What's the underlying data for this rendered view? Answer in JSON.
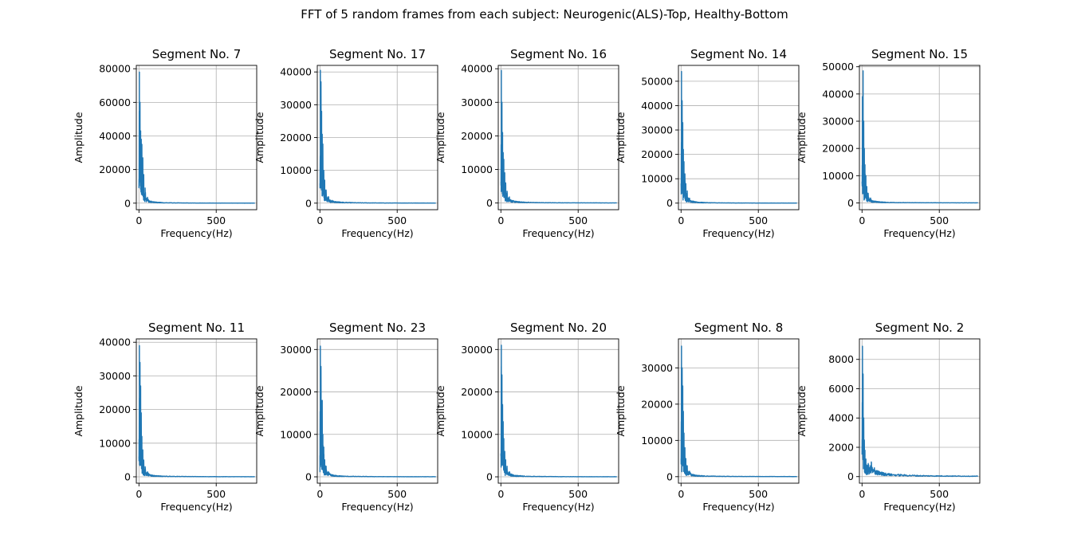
{
  "figure": {
    "title": "FFT of 5 random frames from each subject: Neurogenic(ALS)-Top, Healthy-Bottom"
  },
  "colors": {
    "line": "#1f77b4",
    "grid": "#b0b0b0",
    "axes": "#000000"
  },
  "chart_data": [
    {
      "type": "line",
      "title": "Segment No. 7",
      "xlabel": "Frequency(Hz)",
      "ylabel": "Amplitude",
      "xlim": [
        -17,
        762
      ],
      "ylim": [
        -3900,
        82000
      ],
      "xticks": [
        0,
        500
      ],
      "yticks": [
        0,
        20000,
        40000,
        60000,
        80000
      ],
      "grid": true,
      "peaks": [
        [
          0,
          9000
        ],
        [
          3,
          78000
        ],
        [
          5,
          20000
        ],
        [
          7,
          60000
        ],
        [
          9,
          25000
        ],
        [
          11,
          43000
        ],
        [
          13,
          15000
        ],
        [
          15,
          38000
        ],
        [
          17,
          14000
        ],
        [
          19,
          35000
        ],
        [
          22,
          12000
        ],
        [
          25,
          27000
        ],
        [
          28,
          8000
        ],
        [
          31,
          17000
        ],
        [
          35,
          5000
        ],
        [
          40,
          9000
        ],
        [
          45,
          3000
        ],
        [
          55,
          3500
        ],
        [
          65,
          1500
        ],
        [
          80,
          1200
        ],
        [
          100,
          800
        ],
        [
          150,
          400
        ],
        [
          250,
          200
        ],
        [
          400,
          100
        ],
        [
          740,
          50
        ]
      ]
    },
    {
      "type": "line",
      "title": "Segment No. 17",
      "xlabel": "Frequency(Hz)",
      "ylabel": "Amplitude",
      "xlim": [
        -17,
        762
      ],
      "ylim": [
        -2000,
        42000
      ],
      "xticks": [
        0,
        500
      ],
      "yticks": [
        0,
        10000,
        20000,
        30000,
        40000
      ],
      "grid": true,
      "peaks": [
        [
          0,
          6000
        ],
        [
          3,
          40500
        ],
        [
          5,
          8000
        ],
        [
          7,
          37000
        ],
        [
          9,
          12000
        ],
        [
          11,
          28000
        ],
        [
          13,
          9000
        ],
        [
          15,
          21000
        ],
        [
          17,
          6000
        ],
        [
          19,
          18000
        ],
        [
          22,
          5000
        ],
        [
          25,
          10000
        ],
        [
          28,
          3000
        ],
        [
          31,
          7000
        ],
        [
          35,
          2500
        ],
        [
          40,
          4000
        ],
        [
          45,
          1500
        ],
        [
          55,
          2000
        ],
        [
          65,
          1000
        ],
        [
          80,
          800
        ],
        [
          100,
          500
        ],
        [
          150,
          300
        ],
        [
          250,
          150
        ],
        [
          400,
          80
        ],
        [
          740,
          40
        ]
      ]
    },
    {
      "type": "line",
      "title": "Segment No. 16",
      "xlabel": "Frequency(Hz)",
      "ylabel": "Amplitude",
      "xlim": [
        -17,
        762
      ],
      "ylim": [
        -2000,
        41000
      ],
      "xticks": [
        0,
        500
      ],
      "yticks": [
        0,
        10000,
        20000,
        30000,
        40000
      ],
      "grid": true,
      "peaks": [
        [
          0,
          6000
        ],
        [
          3,
          39500
        ],
        [
          5,
          7000
        ],
        [
          7,
          30000
        ],
        [
          9,
          10000
        ],
        [
          11,
          21000
        ],
        [
          13,
          7000
        ],
        [
          15,
          15000
        ],
        [
          17,
          5000
        ],
        [
          19,
          13000
        ],
        [
          22,
          4000
        ],
        [
          25,
          9000
        ],
        [
          28,
          2500
        ],
        [
          31,
          6000
        ],
        [
          35,
          2000
        ],
        [
          40,
          3500
        ],
        [
          45,
          1500
        ],
        [
          55,
          1800
        ],
        [
          65,
          900
        ],
        [
          80,
          700
        ],
        [
          100,
          500
        ],
        [
          150,
          300
        ],
        [
          250,
          150
        ],
        [
          400,
          80
        ],
        [
          740,
          40
        ]
      ]
    },
    {
      "type": "line",
      "title": "Segment No. 14",
      "xlabel": "Frequency(Hz)",
      "ylabel": "Amplitude",
      "xlim": [
        -17,
        762
      ],
      "ylim": [
        -2700,
        56500
      ],
      "xticks": [
        0,
        500
      ],
      "yticks": [
        0,
        10000,
        20000,
        30000,
        40000,
        50000
      ],
      "grid": true,
      "peaks": [
        [
          0,
          8000
        ],
        [
          3,
          54000
        ],
        [
          5,
          10000
        ],
        [
          7,
          42000
        ],
        [
          9,
          14000
        ],
        [
          11,
          33000
        ],
        [
          13,
          10000
        ],
        [
          15,
          22000
        ],
        [
          17,
          7000
        ],
        [
          19,
          17000
        ],
        [
          22,
          6000
        ],
        [
          25,
          12000
        ],
        [
          28,
          4000
        ],
        [
          31,
          8000
        ],
        [
          35,
          3000
        ],
        [
          40,
          5000
        ],
        [
          45,
          2000
        ],
        [
          55,
          2000
        ],
        [
          65,
          1000
        ],
        [
          80,
          800
        ],
        [
          100,
          500
        ],
        [
          150,
          300
        ],
        [
          250,
          150
        ],
        [
          400,
          80
        ],
        [
          740,
          40
        ]
      ]
    },
    {
      "type": "line",
      "title": "Segment No. 15",
      "xlabel": "Frequency(Hz)",
      "ylabel": "Amplitude",
      "xlim": [
        -17,
        762
      ],
      "ylim": [
        -2500,
        50500
      ],
      "xticks": [
        0,
        500
      ],
      "yticks": [
        0,
        10000,
        20000,
        30000,
        40000,
        50000
      ],
      "grid": true,
      "peaks": [
        [
          0,
          7000
        ],
        [
          3,
          39000
        ],
        [
          5,
          12000
        ],
        [
          7,
          48500
        ],
        [
          9,
          15000
        ],
        [
          11,
          30000
        ],
        [
          13,
          8000
        ],
        [
          15,
          20000
        ],
        [
          17,
          6000
        ],
        [
          19,
          14000
        ],
        [
          22,
          4000
        ],
        [
          25,
          10000
        ],
        [
          28,
          3000
        ],
        [
          31,
          6000
        ],
        [
          35,
          2500
        ],
        [
          40,
          3500
        ],
        [
          45,
          1500
        ],
        [
          55,
          1800
        ],
        [
          65,
          900
        ],
        [
          80,
          700
        ],
        [
          100,
          500
        ],
        [
          150,
          300
        ],
        [
          250,
          150
        ],
        [
          400,
          80
        ],
        [
          740,
          40
        ]
      ]
    },
    {
      "type": "line",
      "title": "Segment No. 11",
      "xlabel": "Frequency(Hz)",
      "ylabel": "Amplitude",
      "xlim": [
        -17,
        762
      ],
      "ylim": [
        -1900,
        41000
      ],
      "xticks": [
        0,
        500
      ],
      "yticks": [
        0,
        10000,
        20000,
        30000,
        40000
      ],
      "grid": true,
      "peaks": [
        [
          0,
          6000
        ],
        [
          3,
          39000
        ],
        [
          5,
          8000
        ],
        [
          7,
          34000
        ],
        [
          9,
          12000
        ],
        [
          11,
          27000
        ],
        [
          13,
          8000
        ],
        [
          15,
          19000
        ],
        [
          17,
          5000
        ],
        [
          19,
          12000
        ],
        [
          22,
          4000
        ],
        [
          25,
          8000
        ],
        [
          28,
          2500
        ],
        [
          31,
          5000
        ],
        [
          35,
          2000
        ],
        [
          40,
          3000
        ],
        [
          45,
          1200
        ],
        [
          55,
          1500
        ],
        [
          65,
          800
        ],
        [
          80,
          600
        ],
        [
          100,
          400
        ],
        [
          150,
          250
        ],
        [
          250,
          150
        ],
        [
          400,
          80
        ],
        [
          740,
          40
        ]
      ]
    },
    {
      "type": "line",
      "title": "Segment No. 23",
      "xlabel": "Frequency(Hz)",
      "ylabel": "Amplitude",
      "xlim": [
        -17,
        762
      ],
      "ylim": [
        -1500,
        32500
      ],
      "xticks": [
        0,
        500
      ],
      "yticks": [
        0,
        10000,
        20000,
        30000
      ],
      "grid": true,
      "peaks": [
        [
          0,
          5000
        ],
        [
          3,
          30800
        ],
        [
          5,
          7000
        ],
        [
          7,
          26000
        ],
        [
          9,
          9000
        ],
        [
          11,
          18000
        ],
        [
          13,
          6000
        ],
        [
          15,
          18000
        ],
        [
          17,
          4000
        ],
        [
          19,
          10000
        ],
        [
          22,
          3000
        ],
        [
          25,
          7000
        ],
        [
          28,
          2000
        ],
        [
          31,
          4000
        ],
        [
          35,
          1500
        ],
        [
          40,
          2500
        ],
        [
          45,
          1000
        ],
        [
          55,
          1200
        ],
        [
          65,
          700
        ],
        [
          80,
          500
        ],
        [
          100,
          350
        ],
        [
          150,
          200
        ],
        [
          250,
          120
        ],
        [
          400,
          60
        ],
        [
          740,
          30
        ]
      ]
    },
    {
      "type": "line",
      "title": "Segment No. 20",
      "xlabel": "Frequency(Hz)",
      "ylabel": "Amplitude",
      "xlim": [
        -17,
        762
      ],
      "ylim": [
        -1500,
        32500
      ],
      "xticks": [
        0,
        500
      ],
      "yticks": [
        0,
        10000,
        20000,
        30000
      ],
      "grid": true,
      "peaks": [
        [
          0,
          5000
        ],
        [
          3,
          31000
        ],
        [
          5,
          8000
        ],
        [
          7,
          24000
        ],
        [
          9,
          9000
        ],
        [
          11,
          17000
        ],
        [
          13,
          6000
        ],
        [
          15,
          13000
        ],
        [
          17,
          4000
        ],
        [
          19,
          9000
        ],
        [
          22,
          3000
        ],
        [
          25,
          6000
        ],
        [
          28,
          2000
        ],
        [
          31,
          4000
        ],
        [
          35,
          1500
        ],
        [
          40,
          2500
        ],
        [
          45,
          1000
        ],
        [
          55,
          1200
        ],
        [
          65,
          700
        ],
        [
          80,
          500
        ],
        [
          100,
          350
        ],
        [
          150,
          200
        ],
        [
          250,
          120
        ],
        [
          400,
          60
        ],
        [
          740,
          30
        ]
      ]
    },
    {
      "type": "line",
      "title": "Segment No. 8",
      "xlabel": "Frequency(Hz)",
      "ylabel": "Amplitude",
      "xlim": [
        -17,
        762
      ],
      "ylim": [
        -1800,
        38000
      ],
      "xticks": [
        0,
        500
      ],
      "yticks": [
        0,
        10000,
        20000,
        30000
      ],
      "grid": true,
      "peaks": [
        [
          0,
          5000
        ],
        [
          3,
          36000
        ],
        [
          5,
          9000
        ],
        [
          7,
          30000
        ],
        [
          9,
          10000
        ],
        [
          11,
          25000
        ],
        [
          13,
          7000
        ],
        [
          15,
          18000
        ],
        [
          17,
          5000
        ],
        [
          19,
          12000
        ],
        [
          22,
          3500
        ],
        [
          25,
          8000
        ],
        [
          28,
          2500
        ],
        [
          31,
          5000
        ],
        [
          35,
          1800
        ],
        [
          40,
          3000
        ],
        [
          45,
          1200
        ],
        [
          55,
          1500
        ],
        [
          65,
          800
        ],
        [
          80,
          600
        ],
        [
          100,
          400
        ],
        [
          150,
          250
        ],
        [
          250,
          150
        ],
        [
          400,
          80
        ],
        [
          740,
          40
        ]
      ]
    },
    {
      "type": "line",
      "title": "Segment No. 2",
      "xlabel": "Frequency(Hz)",
      "ylabel": "Amplitude",
      "xlim": [
        -17,
        762
      ],
      "ylim": [
        -450,
        9400
      ],
      "xticks": [
        0,
        500
      ],
      "yticks": [
        0,
        2000,
        4000,
        6000,
        8000
      ],
      "grid": true,
      "peaks": [
        [
          0,
          1500
        ],
        [
          3,
          8900
        ],
        [
          5,
          2000
        ],
        [
          7,
          7000
        ],
        [
          9,
          2500
        ],
        [
          11,
          4000
        ],
        [
          13,
          1500
        ],
        [
          15,
          2500
        ],
        [
          17,
          1000
        ],
        [
          19,
          1800
        ],
        [
          22,
          800
        ],
        [
          25,
          1200
        ],
        [
          30,
          700
        ],
        [
          40,
          900
        ],
        [
          50,
          600
        ],
        [
          60,
          1000
        ],
        [
          70,
          500
        ],
        [
          80,
          600
        ],
        [
          100,
          400
        ],
        [
          130,
          300
        ],
        [
          180,
          200
        ],
        [
          250,
          150
        ],
        [
          400,
          80
        ],
        [
          740,
          40
        ]
      ]
    }
  ]
}
